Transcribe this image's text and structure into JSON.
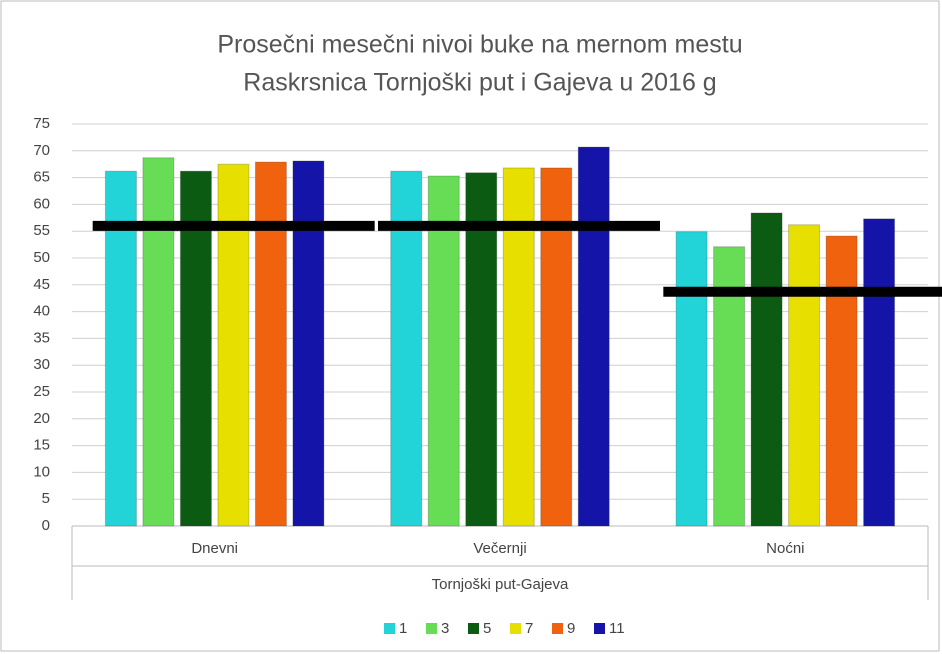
{
  "chart_data": {
    "type": "bar",
    "title": [
      "Prosečni mesečni nivoi buke na mernom mestu",
      "Raskrsnica Tornjoški put i Gajeva u 2016 g"
    ],
    "categories": [
      "Dnevni",
      "Večernji",
      "Noćni"
    ],
    "group_label": "Tornjoški put-Gajeva",
    "series": [
      {
        "name": "1",
        "color": "#22d4d8",
        "values": [
          66.2,
          66.2,
          54.9
        ]
      },
      {
        "name": "3",
        "color": "#66dd55",
        "values": [
          68.7,
          65.3,
          52.1
        ]
      },
      {
        "name": "5",
        "color": "#0b5c12",
        "values": [
          66.2,
          65.9,
          58.4
        ]
      },
      {
        "name": "7",
        "color": "#e6df00",
        "values": [
          67.5,
          66.8,
          56.2
        ]
      },
      {
        "name": "9",
        "color": "#f0620e",
        "values": [
          67.9,
          66.8,
          54.1
        ]
      },
      {
        "name": "11",
        "color": "#1414a8",
        "values": [
          68.1,
          70.7,
          57.3
        ]
      }
    ],
    "limit_values": [
      56,
      56,
      43.7
    ],
    "ylim": [
      0,
      75
    ],
    "yticks": [
      0,
      5,
      10,
      15,
      20,
      25,
      30,
      35,
      40,
      45,
      50,
      55,
      60,
      65,
      70,
      75
    ],
    "grid": true
  }
}
